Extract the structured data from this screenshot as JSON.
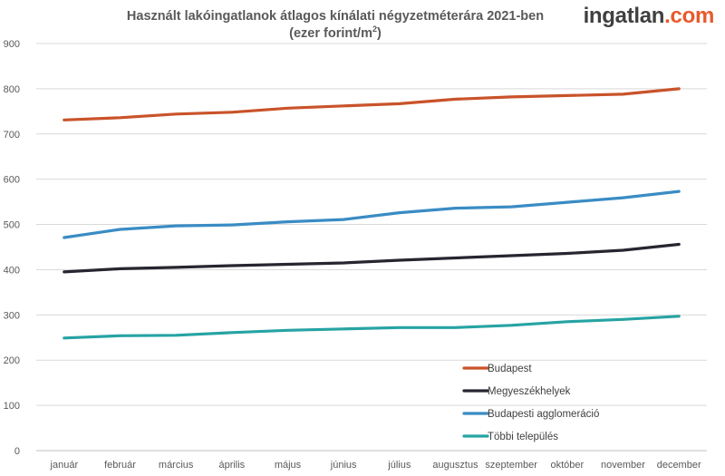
{
  "logo": {
    "part1": "ingatlan",
    "part2": ".com",
    "color_dark": "#404040",
    "color_accent": "#e8592c"
  },
  "chart_data": {
    "type": "line",
    "title": "Használt lakóingatlanok átlagos kínálati négyzetméterára 2021-ben",
    "subtitle_main": "(ezer forint/m",
    "subtitle_sup": "2",
    "subtitle_end": ")",
    "categories": [
      "január",
      "február",
      "március",
      "április",
      "május",
      "június",
      "július",
      "augusztus",
      "szeptember",
      "október",
      "november",
      "december"
    ],
    "ylim": [
      0,
      900
    ],
    "yticks": [
      0,
      100,
      200,
      300,
      400,
      500,
      600,
      700,
      800,
      900
    ],
    "grid": true,
    "legend_position": "bottom-right",
    "series": [
      {
        "name": "Budapest",
        "color": "#c9532a",
        "values": [
          731,
          736,
          744,
          748,
          757,
          762,
          767,
          777,
          782,
          785,
          788,
          800
        ]
      },
      {
        "name": "Megyeszékhelyek",
        "color": "#262630",
        "values": [
          395,
          402,
          405,
          409,
          412,
          415,
          421,
          426,
          431,
          436,
          443,
          456
        ]
      },
      {
        "name": "Budapesti agglomeráció",
        "color": "#3a8cc4",
        "values": [
          471,
          489,
          497,
          499,
          506,
          511,
          526,
          536,
          539,
          549,
          559,
          573
        ]
      },
      {
        "name": "Többi település",
        "color": "#27a3a3",
        "values": [
          249,
          254,
          255,
          261,
          266,
          269,
          272,
          272,
          277,
          285,
          290,
          297
        ]
      }
    ]
  }
}
